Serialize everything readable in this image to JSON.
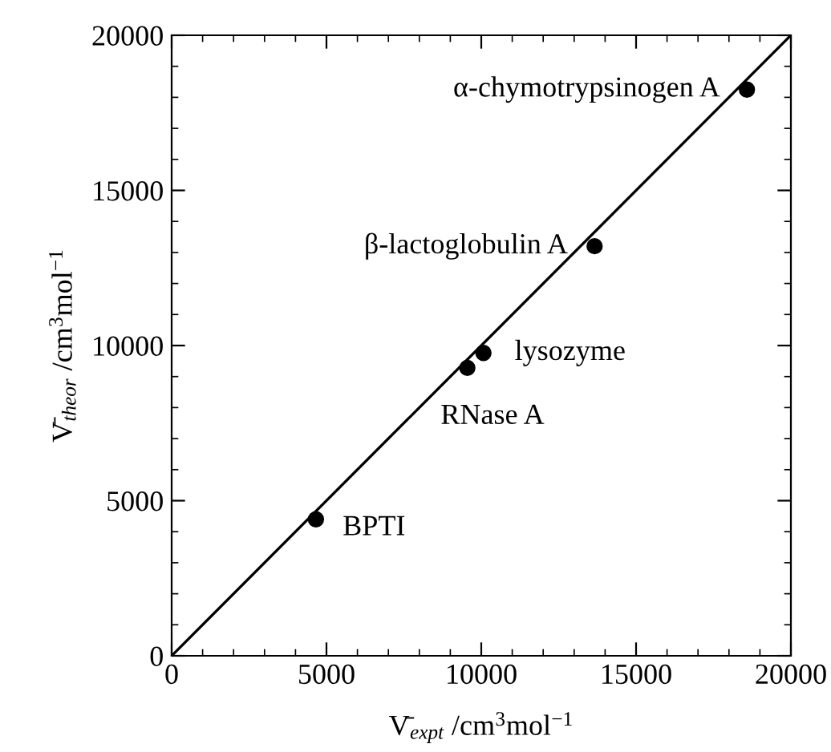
{
  "chart_data": {
    "type": "scatter",
    "xlabel": "V̄$_{expt}$ /cm$^{3}$mol$^{−1}$",
    "ylabel": "V̄$_{theor}$ /cm$^{3}$mol$^{−1}$",
    "xlim": [
      0,
      20000
    ],
    "ylim": [
      0,
      20000
    ],
    "xticks": [
      0,
      {
        "value": 1000,
        "label": null
      },
      {
        "value": 2000,
        "label": null
      },
      {
        "value": 3000,
        "label": null
      },
      {
        "value": 4000,
        "label": null
      },
      5000,
      {
        "value": 6000,
        "label": null
      },
      {
        "value": 7000,
        "label": null
      },
      {
        "value": 8000,
        "label": null
      },
      {
        "value": 9000,
        "label": null
      },
      10000,
      {
        "value": 11000,
        "label": null
      },
      {
        "value": 12000,
        "label": null
      },
      {
        "value": 13000,
        "label": null
      },
      {
        "value": 14000,
        "label": null
      },
      15000,
      {
        "value": 16000,
        "label": null
      },
      {
        "value": 17000,
        "label": null
      },
      {
        "value": 18000,
        "label": null
      },
      {
        "value": 19000,
        "label": null
      },
      20000
    ],
    "yticks": [
      0,
      {
        "value": 1000,
        "label": null
      },
      {
        "value": 2000,
        "label": null
      },
      {
        "value": 3000,
        "label": null
      },
      {
        "value": 4000,
        "label": null
      },
      5000,
      {
        "value": 6000,
        "label": null
      },
      {
        "value": 7000,
        "label": null
      },
      {
        "value": 8000,
        "label": null
      },
      {
        "value": 9000,
        "label": null
      },
      10000,
      {
        "value": 11000,
        "label": null
      },
      {
        "value": 12000,
        "label": null
      },
      {
        "value": 13000,
        "label": null
      },
      {
        "value": 14000,
        "label": null
      },
      15000,
      {
        "value": 16000,
        "label": null
      },
      {
        "value": 17000,
        "label": null
      },
      {
        "value": 18000,
        "label": null
      },
      {
        "value": 19000,
        "label": null
      },
      20000
    ],
    "grid": false,
    "marker": "circle",
    "series": [
      {
        "color": "#000000",
        "x": [
          4660,
          9550,
          10070,
          13660,
          18580
        ],
        "values": [
          4400,
          9280,
          9760,
          13200,
          18250
        ]
      },
      {
        "type": "line",
        "color": "#000000",
        "marker": "none",
        "x": [
          0,
          20000
        ],
        "values": [
          0,
          20000
        ]
      }
    ],
    "annotations": [
      {
        "text": "BPTI",
        "x": 4660,
        "y": 4400
      },
      {
        "text": "RNase A",
        "x": 9550,
        "y": 9280
      },
      {
        "text": "lysozyme",
        "x": 10070,
        "y": 9760
      },
      {
        "text": "β-lactoglobulin A",
        "x": 13660,
        "y": 13200
      },
      {
        "text": "α-chymotrypsinogen A",
        "x": 18580,
        "y": 18250
      }
    ]
  }
}
